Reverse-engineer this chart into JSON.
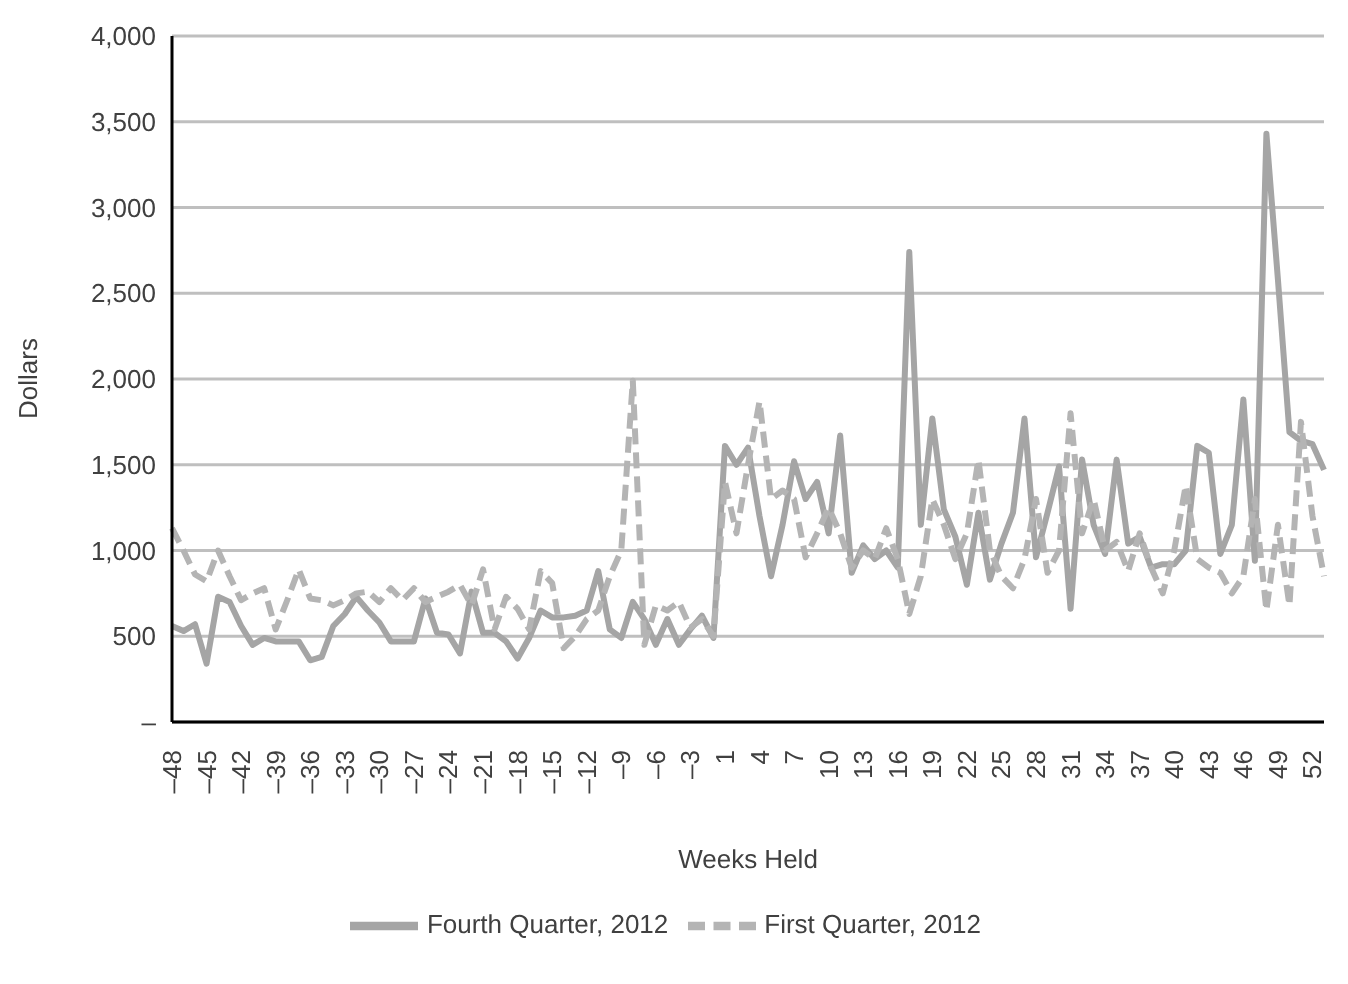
{
  "chart_data": {
    "type": "line",
    "xlabel": "Weeks Held",
    "ylabel": "Dollars",
    "categories": [
      "–48",
      null,
      null,
      "–45",
      null,
      null,
      "–42",
      null,
      null,
      "–39",
      null,
      null,
      "–36",
      null,
      null,
      "–33",
      null,
      null,
      "–30",
      null,
      null,
      "–27",
      null,
      null,
      "–24",
      null,
      null,
      "–21",
      null,
      null,
      "–18",
      null,
      null,
      "–15",
      null,
      null,
      "–12",
      null,
      null,
      "–9",
      null,
      null,
      "–6",
      null,
      null,
      "–3",
      null,
      null,
      "1",
      null,
      null,
      "4",
      null,
      null,
      "7",
      null,
      null,
      "10",
      null,
      null,
      "13",
      null,
      null,
      "16",
      null,
      null,
      "19",
      null,
      null,
      "22",
      null,
      null,
      "25",
      null,
      null,
      "28",
      null,
      null,
      "31",
      null,
      null,
      "34",
      null,
      null,
      "37",
      null,
      null,
      "40",
      null,
      null,
      "43",
      null,
      null,
      "46",
      null,
      null,
      "49",
      null,
      null,
      "52",
      null
    ],
    "series": [
      {
        "name": "Fourth Quarter, 2012",
        "color": "#a5a5a5",
        "line_style": "solid",
        "values": [
          560,
          530,
          570,
          340,
          730,
          700,
          560,
          450,
          490,
          470,
          470,
          470,
          360,
          380,
          560,
          630,
          730,
          650,
          580,
          470,
          470,
          470,
          720,
          520,
          510,
          400,
          760,
          520,
          520,
          470,
          370,
          490,
          650,
          610,
          610,
          620,
          650,
          880,
          540,
          490,
          700,
          600,
          450,
          600,
          450,
          540,
          620,
          490,
          1610,
          1500,
          1600,
          1200,
          850,
          1150,
          1520,
          1300,
          1400,
          1100,
          1670,
          870,
          1030,
          950,
          1000,
          900,
          2740,
          1150,
          1770,
          1240,
          1080,
          800,
          1220,
          830,
          1040,
          1220,
          1770,
          960,
          1220,
          1490,
          660,
          1530,
          1150,
          980,
          1530,
          1040,
          1080,
          900,
          920,
          920,
          1000,
          1610,
          1570,
          980,
          1150,
          1880,
          940,
          3430,
          2580,
          1690,
          1640,
          1620,
          1470
        ]
      },
      {
        "name": "First Quarter, 2012",
        "color": "#b4b4b4",
        "line_style": "dashed",
        "values": [
          1130,
          1000,
          860,
          820,
          1000,
          850,
          710,
          750,
          780,
          540,
          710,
          890,
          720,
          710,
          680,
          710,
          750,
          760,
          700,
          780,
          710,
          780,
          700,
          730,
          760,
          800,
          680,
          890,
          540,
          730,
          660,
          540,
          880,
          810,
          430,
          500,
          600,
          650,
          850,
          1000,
          1990,
          450,
          680,
          650,
          700,
          550,
          600,
          500,
          1400,
          1100,
          1500,
          1870,
          1300,
          1350,
          1300,
          960,
          1100,
          1250,
          1100,
          900,
          1000,
          950,
          1130,
          950,
          630,
          850,
          1300,
          1150,
          950,
          1100,
          1530,
          1000,
          850,
          780,
          950,
          1300,
          870,
          1000,
          1800,
          1100,
          1300,
          1000,
          1050,
          880,
          1100,
          900,
          750,
          1000,
          1380,
          950,
          900,
          870,
          750,
          850,
          1300,
          650,
          1150,
          680,
          1750,
          1200,
          850
        ]
      }
    ],
    "ylim": [
      0,
      4000
    ],
    "yticks": [
      {
        "value": 0,
        "label": "–"
      },
      500,
      {
        "value": 1000,
        "label": "1,000"
      },
      {
        "value": 1500,
        "label": "1,500"
      },
      {
        "value": 2000,
        "label": "2,000"
      },
      {
        "value": 2500,
        "label": "2,500"
      },
      {
        "value": 3000,
        "label": "3,000"
      },
      {
        "value": 3500,
        "label": "3,500"
      },
      {
        "value": 4000,
        "label": "4,000"
      }
    ],
    "grid": "y",
    "legend": "bottom",
    "marker": "none"
  }
}
